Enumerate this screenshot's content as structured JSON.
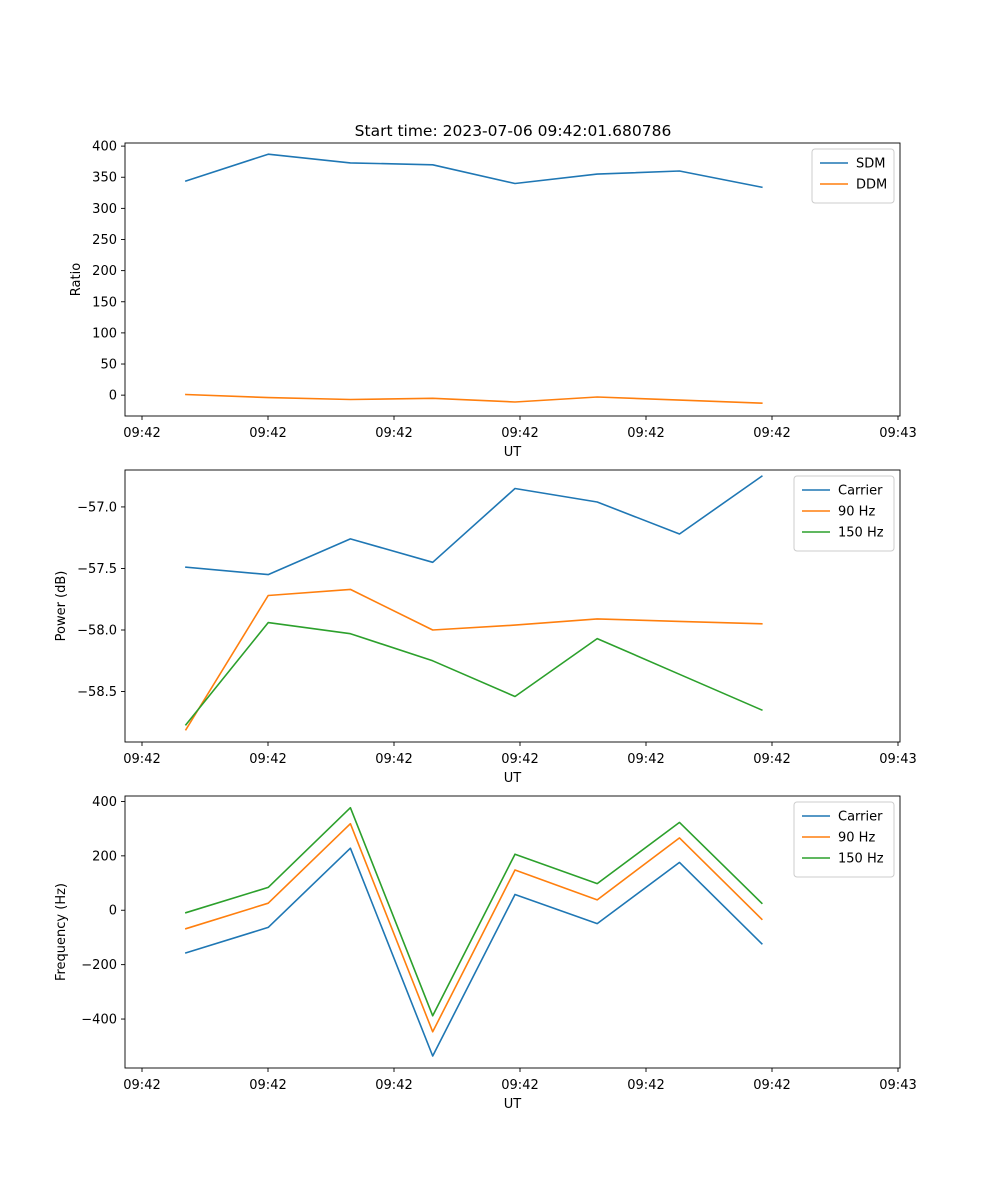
{
  "chart_data": {
    "type": "line",
    "title": "Start time: 2023-07-06 09:42:01.680786",
    "x_tick_labels": [
      "09:42",
      "09:42",
      "09:42",
      "09:42",
      "09:42",
      "09:42",
      "09:43"
    ],
    "x": [
      1,
      2,
      3,
      4,
      5,
      6,
      7,
      8
    ],
    "xlim": [
      0.26,
      9.68
    ],
    "panels": [
      {
        "xlabel": "UT",
        "ylabel": "Ratio",
        "ylim": [
          -33.5,
          405
        ],
        "yticks": [
          0,
          50,
          100,
          150,
          200,
          250,
          300,
          350,
          400
        ],
        "ytick_labels": [
          "0",
          "50",
          "100",
          "150",
          "200",
          "250",
          "300",
          "350",
          "400"
        ],
        "series": [
          {
            "name": "SDM",
            "color": "#1f77b4",
            "values": [
              344,
              387,
              373,
              370,
              340,
              355,
              360,
              334
            ]
          },
          {
            "name": "DDM",
            "color": "#ff7f0e",
            "values": [
              1,
              -4,
              -7,
              -5,
              -11,
              -3,
              -8,
              -13
            ]
          }
        ]
      },
      {
        "xlabel": "UT",
        "ylabel": "Power (dB)",
        "ylim": [
          -58.91,
          -56.7
        ],
        "yticks": [
          -58.5,
          -58.0,
          -57.5,
          -57.0
        ],
        "ytick_labels": [
          "−58.5",
          "−58.0",
          "−57.5",
          "−57.0"
        ],
        "series": [
          {
            "name": "Carrier",
            "color": "#1f77b4",
            "values": [
              -57.49,
              -57.55,
              -57.26,
              -57.45,
              -56.85,
              -56.96,
              -57.22,
              -56.75
            ]
          },
          {
            "name": "90 Hz",
            "color": "#ff7f0e",
            "values": [
              -58.81,
              -57.72,
              -57.67,
              -58.0,
              -57.96,
              -57.91,
              -57.93,
              -57.95
            ]
          },
          {
            "name": "150 Hz",
            "color": "#2ca02c",
            "values": [
              -58.77,
              -57.94,
              -58.03,
              -58.25,
              -58.54,
              -58.07,
              -58.36,
              -58.65
            ]
          }
        ]
      },
      {
        "xlabel": "UT",
        "ylabel": "Frequency (Hz)",
        "ylim": [
          -580,
          420
        ],
        "yticks": [
          -400,
          -200,
          0,
          200,
          400
        ],
        "ytick_labels": [
          "−400",
          "−200",
          "0",
          "200",
          "400"
        ],
        "series": [
          {
            "name": "Carrier",
            "color": "#1f77b4",
            "values": [
              -157,
              -63,
              228,
              -536,
              58,
              -49,
              176,
              -123
            ]
          },
          {
            "name": "90 Hz",
            "color": "#ff7f0e",
            "values": [
              -68,
              26,
              318,
              -447,
              148,
              38,
              266,
              -33
            ]
          },
          {
            "name": "150 Hz",
            "color": "#2ca02c",
            "values": [
              -9,
              84,
              377,
              -388,
              206,
              98,
              323,
              26
            ]
          }
        ]
      }
    ]
  }
}
